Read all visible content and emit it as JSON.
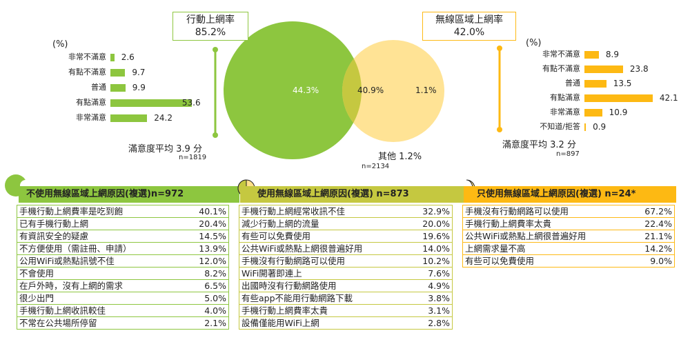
{
  "chart_data": [
    {
      "type": "venn",
      "sets": [
        {
          "name": "行動上網率",
          "value": "85.2%",
          "only": "44.3%"
        },
        {
          "name": "無線區域上網率",
          "value": "42.0%",
          "only": "1.1%"
        }
      ],
      "intersection": "40.9%",
      "other": "其他 1.2%",
      "n": "n=2134"
    },
    {
      "type": "bar",
      "title": "(%)",
      "categories": [
        "非常不滿意",
        "有點不滿意",
        "普通",
        "有點滿意",
        "非常滿意"
      ],
      "values": [
        2.6,
        9.7,
        9.9,
        53.6,
        24.2
      ],
      "satisfaction": "滿意度平均 3.9 分",
      "n": "n=1819"
    },
    {
      "type": "bar",
      "title": "(%)",
      "categories": [
        "非常不滿意",
        "有點不滿意",
        "普通",
        "有點滿意",
        "非常滿意",
        "不知道/拒答"
      ],
      "values": [
        8.9,
        23.8,
        13.5,
        42.1,
        10.9,
        0.9
      ],
      "satisfaction": "滿意度平均 3.2 分",
      "n": "n=897"
    },
    {
      "type": "table",
      "title": "不使用無線區域上網原因(複選)n=972",
      "rows": [
        {
          "reason": "手機行動上網費率是吃到飽",
          "value": "40.1%"
        },
        {
          "reason": "已有手機行動上網",
          "value": "20.4%"
        },
        {
          "reason": "有資訊安全的疑慮",
          "value": "14.5%"
        },
        {
          "reason": "不方便使用（需註冊、申請）",
          "value": "13.9%"
        },
        {
          "reason": "公用WiFi或熱點訊號不佳",
          "value": "12.0%"
        },
        {
          "reason": "不會使用",
          "value": "8.2%"
        },
        {
          "reason": "在戶外時，沒有上網的需求",
          "value": "6.5%"
        },
        {
          "reason": "很少出門",
          "value": "5.0%"
        },
        {
          "reason": "手機行動上網收訊較佳",
          "value": "4.0%"
        },
        {
          "reason": "不常在公共場所停留",
          "value": "2.1%"
        }
      ]
    },
    {
      "type": "table",
      "title": "使用無線區域上網原因(複選) n=873",
      "rows": [
        {
          "reason": "手機行動上網經常收訊不佳",
          "value": "32.9%"
        },
        {
          "reason": "減少行動上網的流量",
          "value": "20.0%"
        },
        {
          "reason": "有些可以免費使用",
          "value": "19.6%"
        },
        {
          "reason": "公共WiFi或熱點上網很普遍好用",
          "value": "14.0%"
        },
        {
          "reason": "手機沒有行動網路可以使用",
          "value": "10.2%"
        },
        {
          "reason": "WiFi開著即連上",
          "value": "7.6%"
        },
        {
          "reason": "出國時沒有行動網路使用",
          "value": "4.9%"
        },
        {
          "reason": "有些app不能用行動網路下載",
          "value": "3.8%"
        },
        {
          "reason": "手機行動上網費率太貴",
          "value": "3.1%"
        },
        {
          "reason": "設備僅能用WiFi上網",
          "value": "2.8%"
        }
      ]
    },
    {
      "type": "table",
      "title": "只使用無線區域上網原因(複選) n=24*",
      "rows": [
        {
          "reason": "手機沒有行動網路可以使用",
          "value": "67.2%"
        },
        {
          "reason": "手機行動上網費率太貴",
          "value": "22.4%"
        },
        {
          "reason": "公共WiFi或熱點上網很普遍好用",
          "value": "21.1%"
        },
        {
          "reason": "上網需求量不高",
          "value": "14.2%"
        },
        {
          "reason": "有些可以免費使用",
          "value": "9.0%"
        }
      ]
    }
  ],
  "colors": {
    "green": "#8dc63f",
    "yellow": "#fdb913",
    "yellow_light": "#ffe08a",
    "overlap": "#c5c840"
  }
}
